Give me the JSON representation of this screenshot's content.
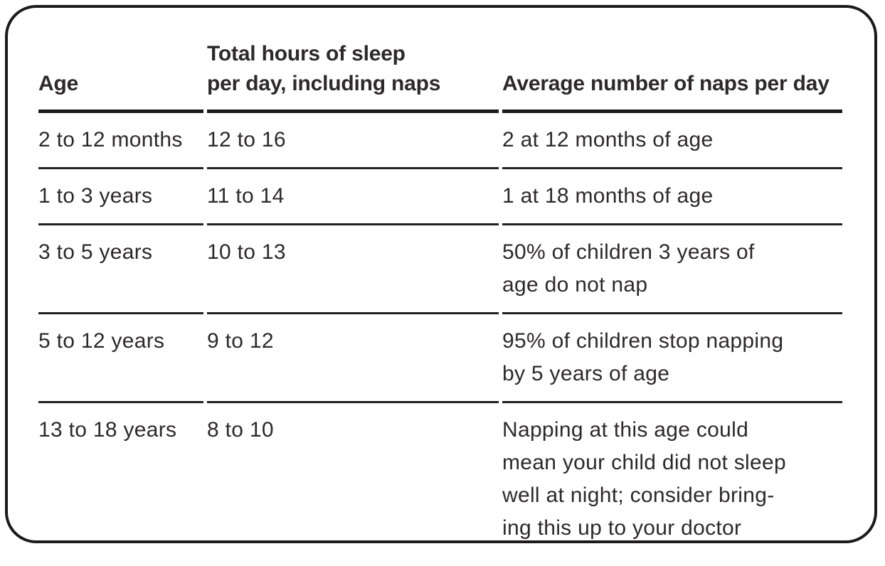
{
  "table": {
    "columns": [
      "Age",
      "Total hours of sleep\nper day, including naps",
      "Average number of naps per day"
    ],
    "rows": [
      {
        "age": "2 to 12 months",
        "hours": "12 to 16",
        "naps": "2 at 12 months of age"
      },
      {
        "age": "1 to 3 years",
        "hours": "11 to 14",
        "naps": "1 at 18 months of age"
      },
      {
        "age": "3 to 5 years",
        "hours": "10 to 13",
        "naps": "50% of children 3 years of\nage do not nap"
      },
      {
        "age": "5 to 12 years",
        "hours": "9 to 12",
        "naps": "95% of children stop napping\nby 5 years of age"
      },
      {
        "age": "13 to 18 years",
        "hours": "8 to 10",
        "naps": "Napping at this age could\nmean your child did not sleep\nwell at night; consider bring-\ning this up to your doctor"
      }
    ]
  },
  "colors": {
    "text": "#2d292a",
    "header_rule": "#1d1a1b",
    "row_rule": "#232021",
    "card_border": "#1d1a1b",
    "background": "#ffffff"
  }
}
